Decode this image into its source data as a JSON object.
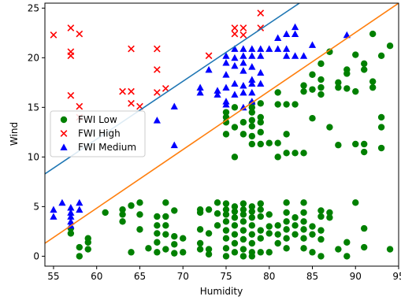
{
  "chart_data": {
    "type": "scatter",
    "xlabel": "Humidity",
    "ylabel": "Wind",
    "xlim": [
      54,
      95
    ],
    "ylim": [
      -1,
      25.5
    ],
    "xticks": [
      55,
      60,
      65,
      70,
      75,
      80,
      85,
      90,
      95
    ],
    "yticks": [
      0,
      5,
      10,
      15,
      20,
      25
    ],
    "grid": false,
    "legend_position": "center-left",
    "series": [
      {
        "name": "FWI Low",
        "marker": "circle",
        "color": "#008000",
        "points": [
          [
            57,
            2.3
          ],
          [
            57,
            2.8
          ],
          [
            58,
            0
          ],
          [
            58,
            0.9
          ],
          [
            59,
            1.4
          ],
          [
            59,
            1.8
          ],
          [
            59,
            0.7
          ],
          [
            61,
            4.4
          ],
          [
            63,
            3.5
          ],
          [
            63,
            4.2
          ],
          [
            63,
            4.7
          ],
          [
            64,
            0.4
          ],
          [
            64,
            5.1
          ],
          [
            65,
            5.4
          ],
          [
            65,
            4.2
          ],
          [
            65,
            2.7
          ],
          [
            66,
            0.8
          ],
          [
            67,
            0.4
          ],
          [
            67,
            1.4
          ],
          [
            67,
            2.3
          ],
          [
            67,
            3.1
          ],
          [
            67,
            4.0
          ],
          [
            68,
            0.7
          ],
          [
            68,
            2.2
          ],
          [
            68,
            3.1
          ],
          [
            68,
            4.0
          ],
          [
            68,
            5.4
          ],
          [
            69,
            0.3
          ],
          [
            69,
            1.2
          ],
          [
            69,
            2.0
          ],
          [
            69,
            4.6
          ],
          [
            70,
            0.4
          ],
          [
            70,
            1.8
          ],
          [
            72,
            0.7
          ],
          [
            72,
            1.3
          ],
          [
            72,
            2.7
          ],
          [
            72,
            4.4
          ],
          [
            72,
            4.7
          ],
          [
            73,
            0.2
          ],
          [
            73,
            0.7
          ],
          [
            73,
            2.3
          ],
          [
            73,
            4.7
          ],
          [
            74,
            3.1
          ],
          [
            74,
            4.3
          ],
          [
            74,
            5.4
          ],
          [
            75,
            0
          ],
          [
            75,
            0.8
          ],
          [
            75,
            1.8
          ],
          [
            75,
            2.6
          ],
          [
            75,
            3.5
          ],
          [
            75,
            4.2
          ],
          [
            75,
            4.7
          ],
          [
            75,
            5.3
          ],
          [
            75,
            12.3
          ],
          [
            75,
            13.5
          ],
          [
            75,
            14.0
          ],
          [
            75,
            14.5
          ],
          [
            76,
            0.4
          ],
          [
            76,
            1.3
          ],
          [
            76,
            2.2
          ],
          [
            76,
            3.1
          ],
          [
            76,
            3.9
          ],
          [
            76,
            4.5
          ],
          [
            76,
            5.0
          ],
          [
            76,
            10.0
          ],
          [
            76,
            13.0
          ],
          [
            76,
            15.0
          ],
          [
            77,
            0
          ],
          [
            77,
            0.7
          ],
          [
            77,
            1.7
          ],
          [
            77,
            2.6
          ],
          [
            77,
            3.5
          ],
          [
            77,
            4.2
          ],
          [
            77,
            4.7
          ],
          [
            77,
            5.3
          ],
          [
            77,
            12.3
          ],
          [
            77,
            13.5
          ],
          [
            78,
            0
          ],
          [
            78,
            0.4
          ],
          [
            78,
            1.3
          ],
          [
            78,
            2.2
          ],
          [
            78,
            3.1
          ],
          [
            78,
            3.9
          ],
          [
            78,
            4.5
          ],
          [
            78,
            5.0
          ],
          [
            78,
            11.3
          ],
          [
            78,
            12.1
          ],
          [
            78,
            13.1
          ],
          [
            78,
            13.7
          ],
          [
            78,
            14.5
          ],
          [
            78,
            15.0
          ],
          [
            78,
            15.4
          ],
          [
            79,
            0.4
          ],
          [
            79,
            1.8
          ],
          [
            79,
            2.6
          ],
          [
            79,
            4.0
          ],
          [
            79,
            4.7
          ],
          [
            79,
            5.3
          ],
          [
            79,
            11.3
          ],
          [
            79,
            12.5
          ],
          [
            79,
            13.5
          ],
          [
            79,
            14.0
          ],
          [
            79,
            15.4
          ],
          [
            80,
            0.4
          ],
          [
            80,
            2.3
          ],
          [
            80,
            3.0
          ],
          [
            80,
            4.2
          ],
          [
            80,
            11.4
          ],
          [
            81,
            1.3
          ],
          [
            81,
            2.2
          ],
          [
            81,
            3.1
          ],
          [
            81,
            10.0
          ],
          [
            81,
            11.4
          ],
          [
            81,
            15.3
          ],
          [
            81,
            16.5
          ],
          [
            82,
            0.8
          ],
          [
            82,
            1.8
          ],
          [
            82,
            2.7
          ],
          [
            82,
            3.5
          ],
          [
            82,
            4.4
          ],
          [
            82,
            5.4
          ],
          [
            82,
            10.4
          ],
          [
            82,
            12.3
          ],
          [
            82,
            15.3
          ],
          [
            83,
            2.2
          ],
          [
            83,
            3.1
          ],
          [
            83,
            3.9
          ],
          [
            83,
            10.4
          ],
          [
            83,
            15.3
          ],
          [
            84,
            0.8
          ],
          [
            84,
            1.8
          ],
          [
            84,
            2.7
          ],
          [
            84,
            3.5
          ],
          [
            84,
            4.4
          ],
          [
            84,
            5.4
          ],
          [
            84,
            10.4
          ],
          [
            84,
            16.6
          ],
          [
            84,
            17.2
          ],
          [
            85,
            0.4
          ],
          [
            85,
            2.2
          ],
          [
            85,
            3.0
          ],
          [
            85,
            13.9
          ],
          [
            85,
            16.8
          ],
          [
            85,
            18.3
          ],
          [
            86,
            0
          ],
          [
            86,
            1.7
          ],
          [
            86,
            2.6
          ],
          [
            86,
            4.0
          ],
          [
            86,
            4.6
          ],
          [
            86,
            16.3
          ],
          [
            86,
            17.0
          ],
          [
            86,
            17.8
          ],
          [
            86,
            19.4
          ],
          [
            87,
            3.9
          ],
          [
            87,
            4.4
          ],
          [
            87,
            13.0
          ],
          [
            87,
            20.6
          ],
          [
            88,
            0.7
          ],
          [
            88,
            11.2
          ],
          [
            88,
            17.0
          ],
          [
            88,
            17.5
          ],
          [
            89,
            0
          ],
          [
            89,
            1.4
          ],
          [
            89,
            16.9
          ],
          [
            89,
            18.4
          ],
          [
            89,
            18.8
          ],
          [
            90,
            5.4
          ],
          [
            90,
            11.3
          ],
          [
            90,
            16.6
          ],
          [
            90,
            20.3
          ],
          [
            91,
            0.9
          ],
          [
            91,
            2.8
          ],
          [
            91,
            10.5
          ],
          [
            91,
            11.3
          ],
          [
            91,
            18.8
          ],
          [
            91,
            19.4
          ],
          [
            92,
            17.0
          ],
          [
            92,
            17.6
          ],
          [
            92,
            22.4
          ],
          [
            93,
            13.0
          ],
          [
            93,
            14.0
          ],
          [
            93,
            20.2
          ],
          [
            93,
            10.9
          ],
          [
            94,
            0.7
          ],
          [
            94,
            21.2
          ]
        ]
      },
      {
        "name": "FWI High",
        "marker": "x",
        "color": "#ff0000",
        "points": [
          [
            55,
            22.3
          ],
          [
            57,
            23.0
          ],
          [
            57,
            20.6
          ],
          [
            57,
            20.2
          ],
          [
            57,
            16.2
          ],
          [
            58,
            22.4
          ],
          [
            58,
            15.1
          ],
          [
            58,
            14.0
          ],
          [
            63,
            16.6
          ],
          [
            64,
            16.6
          ],
          [
            64,
            15.4
          ],
          [
            64,
            20.9
          ],
          [
            65,
            15.1
          ],
          [
            67,
            16.5
          ],
          [
            67,
            18.8
          ],
          [
            67,
            20.9
          ],
          [
            68,
            16.9
          ],
          [
            73,
            20.2
          ],
          [
            76,
            23.0
          ],
          [
            76,
            22.4
          ],
          [
            77,
            23.0
          ],
          [
            77,
            22.3
          ],
          [
            79,
            24.5
          ],
          [
            79,
            23.0
          ]
        ]
      },
      {
        "name": "FWI Medium",
        "marker": "triangle",
        "color": "#0000ff",
        "points": [
          [
            55,
            4.0
          ],
          [
            55,
            4.7
          ],
          [
            56,
            5.4
          ],
          [
            57,
            3.1
          ],
          [
            57,
            3.5
          ],
          [
            57,
            4.0
          ],
          [
            57,
            4.4
          ],
          [
            57,
            4.9
          ],
          [
            58,
            4.7
          ],
          [
            58,
            5.4
          ],
          [
            67,
            13.7
          ],
          [
            69,
            15.1
          ],
          [
            69,
            11.2
          ],
          [
            72,
            16.5
          ],
          [
            72,
            17.0
          ],
          [
            73,
            18.8
          ],
          [
            74,
            16.3
          ],
          [
            74,
            16.7
          ],
          [
            75,
            15.3
          ],
          [
            75,
            15.6
          ],
          [
            75,
            17.0
          ],
          [
            75,
            18.3
          ],
          [
            75,
            19.5
          ],
          [
            75,
            20.2
          ],
          [
            76,
            16.3
          ],
          [
            76,
            17.4
          ],
          [
            76,
            19.2
          ],
          [
            76,
            20.0
          ],
          [
            76,
            20.9
          ],
          [
            77,
            15.0
          ],
          [
            77,
            16.5
          ],
          [
            77,
            17.2
          ],
          [
            77,
            18.7
          ],
          [
            77,
            19.5
          ],
          [
            77,
            20.2
          ],
          [
            77,
            20.9
          ],
          [
            78,
            15.6
          ],
          [
            78,
            16.5
          ],
          [
            78,
            17.4
          ],
          [
            78,
            17.8
          ],
          [
            78,
            19.1
          ],
          [
            78,
            20.2
          ],
          [
            78,
            20.9
          ],
          [
            79,
            17.4
          ],
          [
            79,
            18.5
          ],
          [
            79,
            20.2
          ],
          [
            79,
            20.9
          ],
          [
            80,
            20.9
          ],
          [
            81,
            20.9
          ],
          [
            81,
            22.0
          ],
          [
            82,
            20.2
          ],
          [
            82,
            20.9
          ],
          [
            82,
            22.4
          ],
          [
            83,
            20.2
          ],
          [
            83,
            22.4
          ],
          [
            83,
            23.1
          ],
          [
            84,
            20.2
          ],
          [
            85,
            21.3
          ],
          [
            89,
            22.3
          ]
        ]
      }
    ],
    "lines": [
      {
        "color": "#1f77b4",
        "from": [
          54,
          8.3
        ],
        "to": [
          83.5,
          25.5
        ]
      },
      {
        "color": "#ff7f0e",
        "from": [
          54,
          1.3
        ],
        "to": [
          95,
          25.5
        ]
      }
    ]
  }
}
